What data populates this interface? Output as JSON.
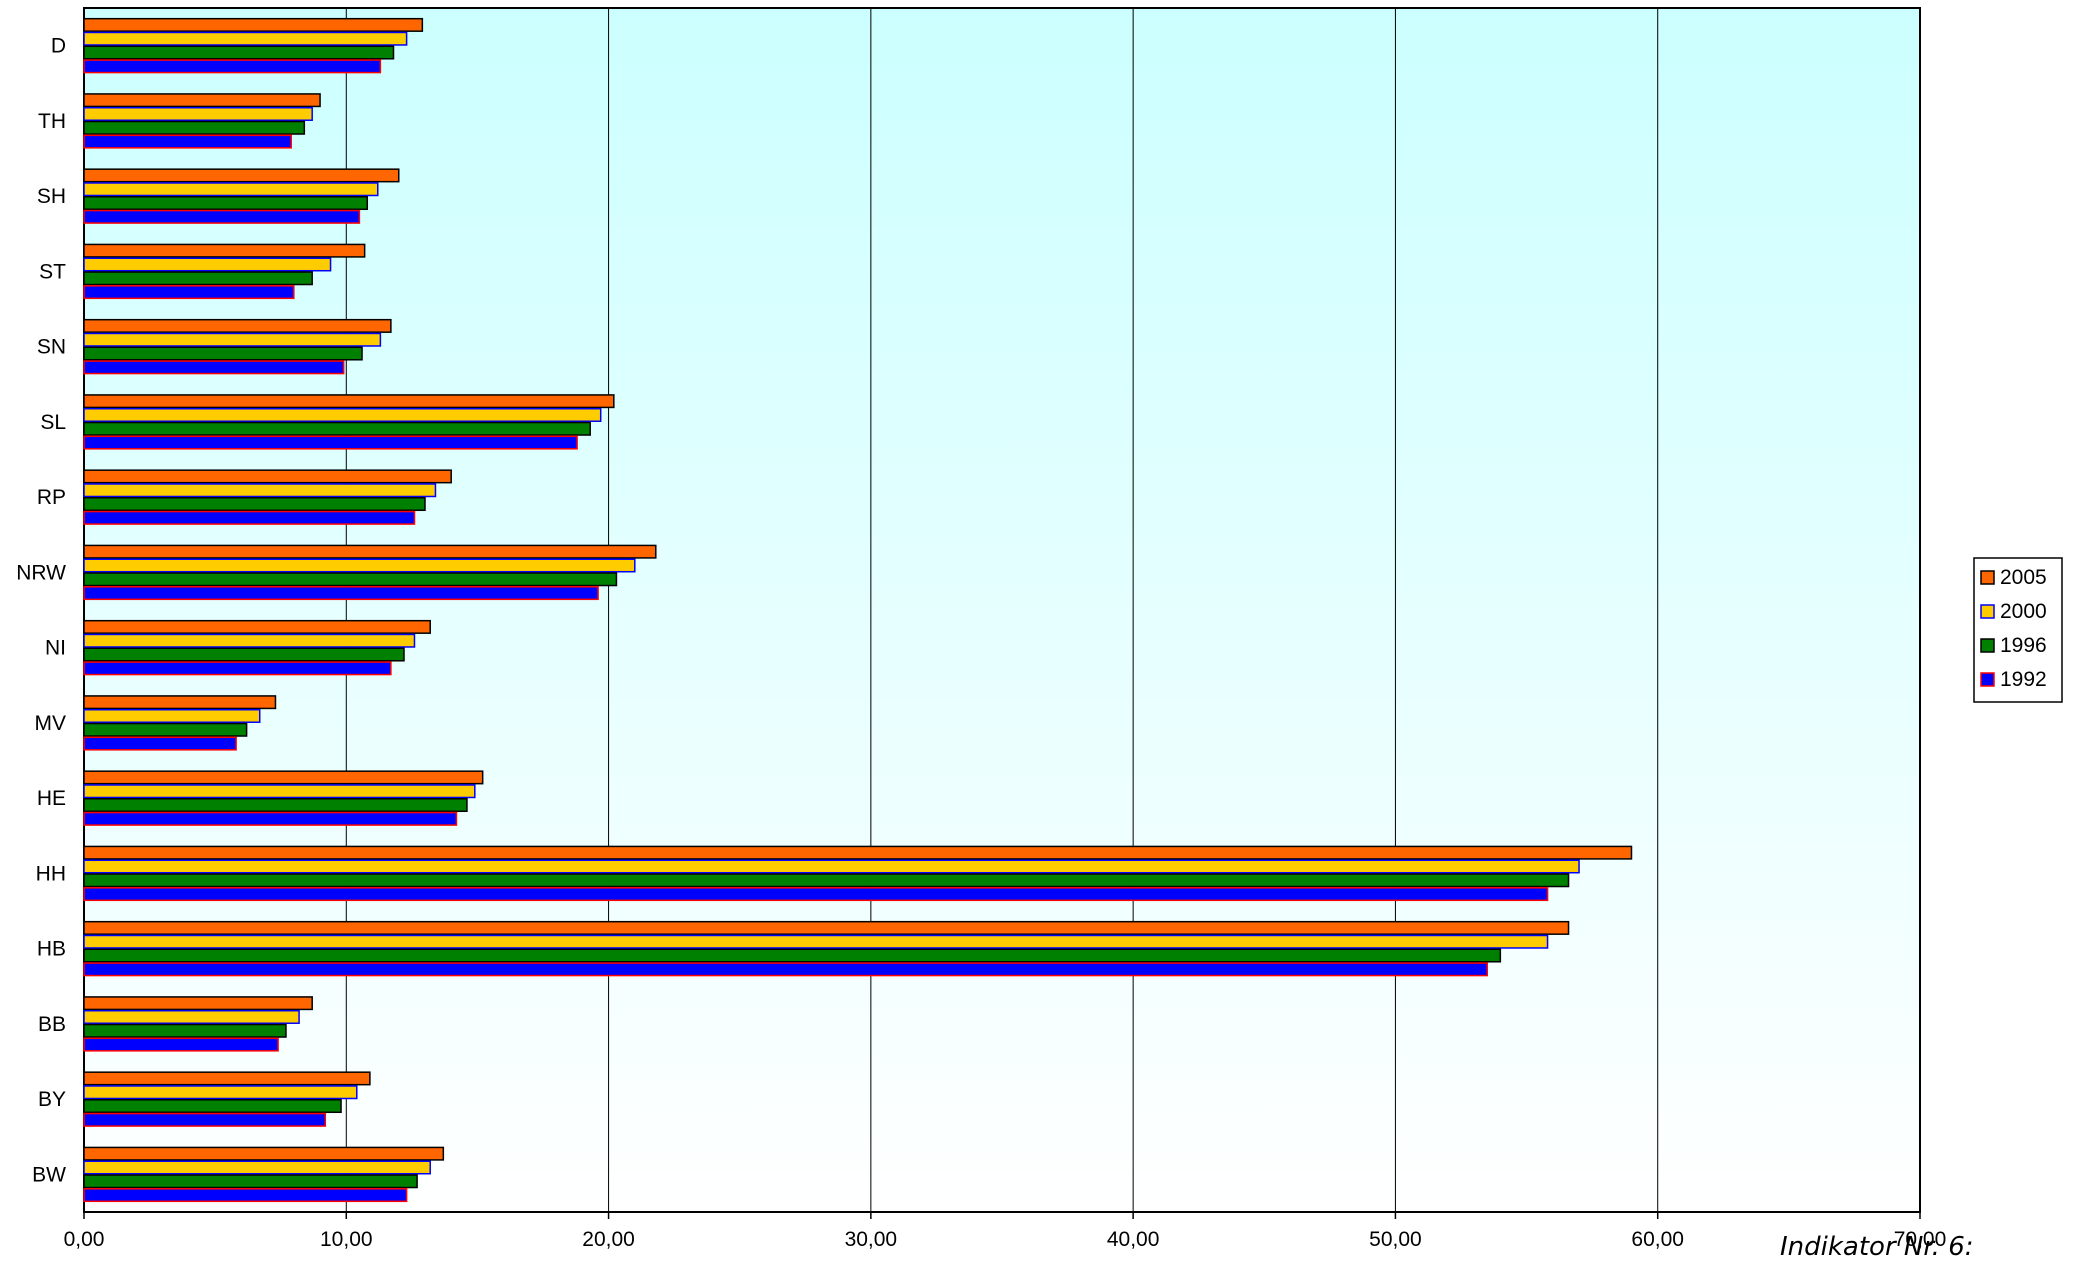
{
  "chart_data": {
    "type": "bar",
    "orientation": "horizontal",
    "categories": [
      "D",
      "TH",
      "SH",
      "ST",
      "SN",
      "SL",
      "RP",
      "NRW",
      "NI",
      "MV",
      "HE",
      "HH",
      "HB",
      "BB",
      "BY",
      "BW"
    ],
    "series": [
      {
        "name": "2005",
        "color": "#ff6600",
        "values": [
          12.9,
          9.0,
          12.0,
          10.7,
          11.7,
          20.2,
          14.0,
          21.8,
          13.2,
          7.3,
          15.2,
          59.0,
          56.6,
          8.7,
          10.9,
          13.7
        ]
      },
      {
        "name": "2000",
        "color": "#ffcc00",
        "values": [
          12.3,
          8.7,
          11.2,
          9.4,
          11.3,
          19.7,
          13.4,
          21.0,
          12.6,
          6.7,
          14.9,
          57.0,
          55.8,
          8.2,
          10.4,
          13.2
        ]
      },
      {
        "name": "1996",
        "color": "#008000",
        "values": [
          11.8,
          8.4,
          10.8,
          8.7,
          10.6,
          19.3,
          13.0,
          20.3,
          12.2,
          6.2,
          14.6,
          56.6,
          54.0,
          7.7,
          9.8,
          12.7
        ]
      },
      {
        "name": "1992",
        "color": "#0000ff",
        "values": [
          11.3,
          7.9,
          10.5,
          8.0,
          9.9,
          18.8,
          12.6,
          19.6,
          11.7,
          5.8,
          14.2,
          55.8,
          53.5,
          7.4,
          9.2,
          12.3
        ]
      }
    ],
    "xlim": [
      0,
      70
    ],
    "xticks": [
      "0,00",
      "10,00",
      "20,00",
      "30,00",
      "40,00",
      "50,00",
      "60,00",
      "70,00"
    ],
    "grid": true,
    "legend_position": "right",
    "background_gradient": [
      "#ccffff",
      "#ffffff"
    ]
  },
  "footnote": "Indikator Nr. 6:"
}
